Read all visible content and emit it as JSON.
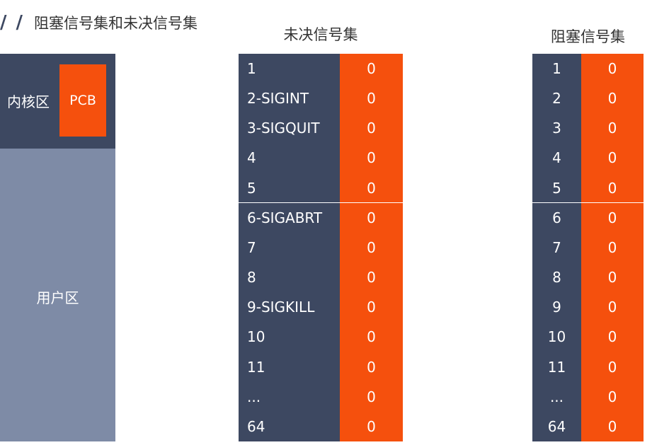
{
  "heading": {
    "slash": "/ /",
    "title": "阻塞信号集和未决信号集"
  },
  "memory": {
    "kernel_label": "内核区",
    "pcb_label": "PCB",
    "user_label": "用户区"
  },
  "pending_set": {
    "title": "未决信号集",
    "rows": [
      {
        "label": "1",
        "value": "0"
      },
      {
        "label": "2-SIGINT",
        "value": "0"
      },
      {
        "label": "3-SIGQUIT",
        "value": "0"
      },
      {
        "label": "4",
        "value": "0"
      },
      {
        "label": "5",
        "value": "0"
      },
      {
        "label": "6-SIGABRT",
        "value": "0"
      },
      {
        "label": "7",
        "value": "0"
      },
      {
        "label": "8",
        "value": "0"
      },
      {
        "label": "9-SIGKILL",
        "value": "0"
      },
      {
        "label": "10",
        "value": "0"
      },
      {
        "label": "11",
        "value": "0"
      },
      {
        "label": "...",
        "value": "0"
      },
      {
        "label": "64",
        "value": "0"
      }
    ]
  },
  "blocked_set": {
    "title": "阻塞信号集",
    "rows": [
      {
        "label": "1",
        "value": "0"
      },
      {
        "label": "2",
        "value": "0"
      },
      {
        "label": "3",
        "value": "0"
      },
      {
        "label": "4",
        "value": "0"
      },
      {
        "label": "5",
        "value": "0"
      },
      {
        "label": "6",
        "value": "0"
      },
      {
        "label": "7",
        "value": "0"
      },
      {
        "label": "8",
        "value": "0"
      },
      {
        "label": "9",
        "value": "0"
      },
      {
        "label": "10",
        "value": "0"
      },
      {
        "label": "11",
        "value": "0"
      },
      {
        "label": "...",
        "value": "0"
      },
      {
        "label": "64",
        "value": "0"
      }
    ]
  },
  "colors": {
    "dark_slate": "#3d4861",
    "light_slate": "#7e8ba6",
    "accent_orange": "#f5500d"
  }
}
